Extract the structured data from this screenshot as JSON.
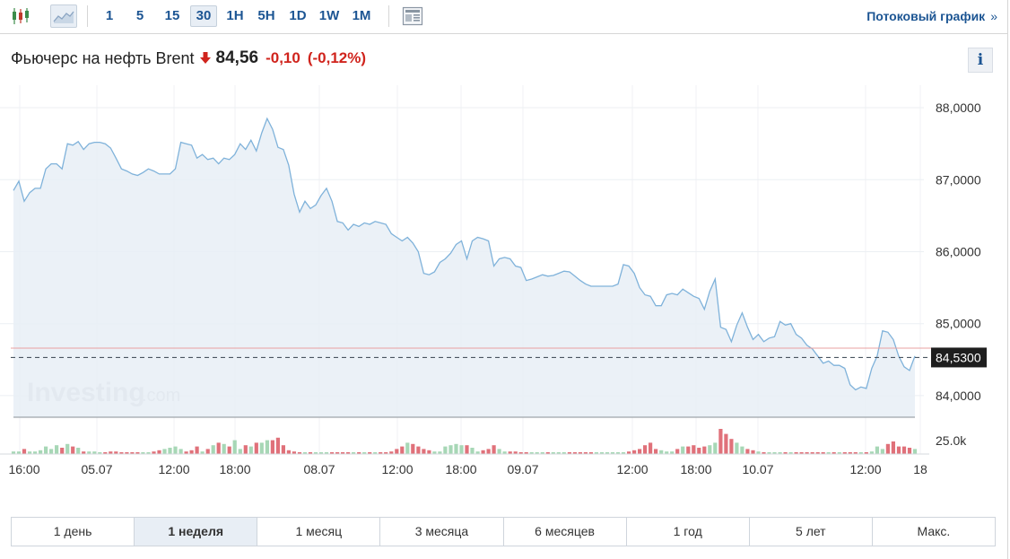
{
  "toolbar": {
    "candle_icon": "candlestick-icon",
    "area_icon": "area-chart-icon",
    "timeframes": [
      "1",
      "5",
      "15",
      "30",
      "1H",
      "5H",
      "1D",
      "1W",
      "1M"
    ],
    "active_timeframe": "30",
    "layout_icon": "layout-icon",
    "stream_label": "Потоковый график",
    "stream_chevron": "»"
  },
  "header": {
    "title": "Фьючерс на нефть Brent",
    "price": "84,56",
    "change": "-0,10",
    "change_pct": "(-0,12%)",
    "info_label": "i",
    "colors": {
      "down": "#d0241d",
      "link": "#1c5593"
    }
  },
  "chart_data": {
    "type": "area",
    "y_ticks": [
      "88,0000",
      "87,0000",
      "86,0000",
      "85,0000",
      "84,0000"
    ],
    "y_tick_values": [
      88,
      87,
      86,
      85,
      84
    ],
    "ylim": [
      83.7,
      88.25
    ],
    "last_price_label": "84,5300",
    "last_price": 84.53,
    "reference_line": 84.66,
    "x_ticks": [
      "16:00",
      "05.07",
      "12:00",
      "18:00",
      "08.07",
      "12:00",
      "18:00",
      "09.07",
      "12:00",
      "18:00",
      "10.07",
      "12:00",
      "18"
    ],
    "volume_label": "25.0k",
    "watermark": "Investing",
    "watermark_suffix": ".com",
    "values": [
      86.85,
      86.98,
      86.7,
      86.82,
      86.88,
      86.88,
      87.15,
      87.22,
      87.22,
      87.15,
      87.5,
      87.48,
      87.53,
      87.42,
      87.5,
      87.52,
      87.52,
      87.5,
      87.44,
      87.3,
      87.15,
      87.12,
      87.08,
      87.06,
      87.1,
      87.15,
      87.12,
      87.08,
      87.08,
      87.08,
      87.15,
      87.52,
      87.5,
      87.48,
      87.3,
      87.35,
      87.28,
      87.3,
      87.22,
      87.3,
      87.28,
      87.35,
      87.5,
      87.42,
      87.55,
      87.4,
      87.65,
      87.85,
      87.7,
      87.45,
      87.42,
      87.2,
      86.8,
      86.55,
      86.7,
      86.6,
      86.65,
      86.78,
      86.88,
      86.7,
      86.42,
      86.4,
      86.3,
      86.38,
      86.35,
      86.4,
      86.38,
      86.42,
      86.4,
      86.38,
      86.25,
      86.2,
      86.15,
      86.2,
      86.12,
      86.0,
      85.7,
      85.68,
      85.72,
      85.85,
      85.9,
      85.98,
      86.1,
      86.15,
      85.9,
      86.15,
      86.2,
      86.18,
      86.15,
      85.8,
      85.9,
      85.92,
      85.9,
      85.8,
      85.78,
      85.6,
      85.62,
      85.65,
      85.68,
      85.66,
      85.67,
      85.7,
      85.73,
      85.72,
      85.66,
      85.6,
      85.55,
      85.52,
      85.52,
      85.52,
      85.52,
      85.52,
      85.55,
      85.82,
      85.8,
      85.7,
      85.5,
      85.4,
      85.38,
      85.25,
      85.25,
      85.4,
      85.42,
      85.4,
      85.48,
      85.43,
      85.38,
      85.35,
      85.2,
      85.45,
      85.62,
      84.95,
      84.92,
      84.75,
      84.98,
      85.15,
      84.95,
      84.78,
      84.85,
      84.75,
      84.8,
      84.82,
      85.03,
      84.98,
      85.0,
      84.85,
      84.8,
      84.7,
      84.65,
      84.55,
      84.45,
      84.48,
      84.42,
      84.42,
      84.38,
      84.15,
      84.08,
      84.12,
      84.1,
      84.38,
      84.55,
      84.9,
      84.88,
      84.78,
      84.55,
      84.4,
      84.35,
      84.55
    ],
    "volumes": [
      0.1,
      0.1,
      0.2,
      0.1,
      0.1,
      0.15,
      0.3,
      0.2,
      0.35,
      0.25,
      0.4,
      0.3,
      0.25,
      0.1,
      0.1,
      0.1,
      0.05,
      0.05,
      0.1,
      0.1,
      0.05,
      0.05,
      0.05,
      0.05,
      0.05,
      0.05,
      0.1,
      0.15,
      0.2,
      0.25,
      0.3,
      0.2,
      0.1,
      0.15,
      0.3,
      0.1,
      0.2,
      0.35,
      0.45,
      0.4,
      0.3,
      0.55,
      0.2,
      0.35,
      0.3,
      0.45,
      0.45,
      0.55,
      0.55,
      0.65,
      0.35,
      0.15,
      0.1,
      0.05,
      0.05,
      0.05,
      0.05,
      0.05,
      0.05,
      0.05,
      0.05,
      0.05,
      0.05,
      0.05,
      0.05,
      0.05,
      0.05,
      0.05,
      0.05,
      0.05,
      0.1,
      0.2,
      0.3,
      0.45,
      0.4,
      0.3,
      0.2,
      0.15,
      0.1,
      0.1,
      0.3,
      0.35,
      0.4,
      0.35,
      0.35,
      0.25,
      0.1,
      0.15,
      0.2,
      0.35,
      0.2,
      0.1,
      0.1,
      0.1,
      0.05,
      0.05,
      0.05,
      0.05,
      0.05,
      0.05,
      0.05,
      0.05,
      0.05,
      0.05,
      0.05,
      0.05,
      0.05,
      0.05,
      0.05,
      0.05,
      0.05,
      0.05,
      0.05,
      0.05,
      0.1,
      0.15,
      0.2,
      0.35,
      0.45,
      0.2,
      0.15,
      0.1,
      0.1,
      0.2,
      0.3,
      0.3,
      0.35,
      0.25,
      0.3,
      0.35,
      0.45,
      1.0,
      0.8,
      0.6,
      0.45,
      0.3,
      0.2,
      0.15,
      0.1,
      0.05,
      0.05,
      0.05,
      0.05,
      0.05,
      0.05,
      0.05,
      0.05,
      0.05,
      0.05,
      0.05,
      0.05,
      0.05,
      0.05,
      0.05,
      0.05,
      0.05,
      0.05,
      0.05,
      0.05,
      0.1,
      0.3,
      0.2,
      0.4,
      0.5,
      0.3,
      0.3,
      0.25,
      0.2
    ],
    "colors": {
      "line": "#7fb2da",
      "area": "#e8eff6",
      "up_vol": "#a7d7b6",
      "down_vol": "#e0717a",
      "ref": "#e8a0a0"
    }
  },
  "periods": {
    "items": [
      "1 день",
      "1 неделя",
      "1 месяц",
      "3 месяца",
      "6 месяцев",
      "1 год",
      "5 лет",
      "Макс."
    ],
    "active": "1 неделя"
  }
}
